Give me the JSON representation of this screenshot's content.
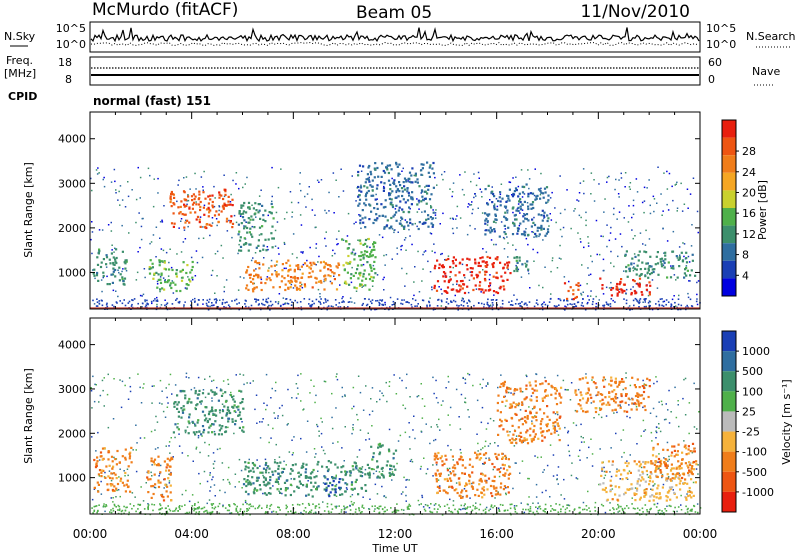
{
  "header": {
    "station": "McMurdo (fitACF)",
    "beam": "Beam 05",
    "date": "11/Nov/2010"
  },
  "strip_panels": {
    "nsky_label": "N.Sky",
    "nsky_ticks": [
      "10^5",
      "10^0"
    ],
    "nsearch_label": "N.Search",
    "nsearch_ticks": [
      "10^5",
      "10^0"
    ],
    "freq_label_1": "Freq.",
    "freq_label_2": "[MHz]",
    "freq_ticks": [
      "18",
      "8"
    ],
    "nave_label": "Nave",
    "nave_ticks": [
      "60",
      "0"
    ],
    "cpid_label": "CPID",
    "cpid_value": "normal (fast) 151"
  },
  "x_axis": {
    "label": "Time UT",
    "ticks": [
      "00:00",
      "04:00",
      "08:00",
      "12:00",
      "16:00",
      "20:00",
      "00:00"
    ]
  },
  "colors": {
    "power_scale": [
      "#0000e0",
      "#1a3fb5",
      "#2f6ea0",
      "#3c8f6c",
      "#4fb04a",
      "#c9d12e",
      "#f5a623",
      "#f07d1a",
      "#ee5512",
      "#e81f0e"
    ],
    "velocity_scale": [
      "#1a3fb5",
      "#2f6ea0",
      "#3c8f6c",
      "#4fb04a",
      "#bbbbbb",
      "#f5b23b",
      "#f07d1a",
      "#ee5512",
      "#e81f0e"
    ]
  },
  "chart_data": [
    {
      "type": "heatmap",
      "panel": "power",
      "ylabel": "Slant Range [km]",
      "ylim": [
        180,
        4600
      ],
      "yticks": [
        1000,
        2000,
        3000,
        4000
      ],
      "xlim_hours": [
        0,
        24
      ],
      "colorbar_label": "Power [dB]",
      "colorbar_ticks": [
        "4",
        "8",
        "12",
        "16",
        "20",
        "24",
        "28"
      ],
      "patches": [
        {
          "t0": 0.1,
          "t1": 1.4,
          "r0": 750,
          "r1": 1550,
          "color": "#3c8f6c"
        },
        {
          "t0": 2.3,
          "t1": 4.0,
          "r0": 600,
          "r1": 1300,
          "color": "#4fb04a"
        },
        {
          "t0": 3.1,
          "t1": 5.6,
          "r0": 2000,
          "r1": 2900,
          "color": "#ee5512"
        },
        {
          "t0": 5.8,
          "t1": 7.2,
          "r0": 1500,
          "r1": 2600,
          "color": "#3c8f6c"
        },
        {
          "t0": 6.0,
          "t1": 9.8,
          "r0": 600,
          "r1": 1300,
          "color": "#f07d1a"
        },
        {
          "t0": 9.8,
          "t1": 11.2,
          "r0": 600,
          "r1": 1800,
          "color": "#4fb04a"
        },
        {
          "t0": 13.5,
          "t1": 16.5,
          "r0": 550,
          "r1": 1400,
          "color": "#e81f0e"
        },
        {
          "t0": 16.6,
          "t1": 17.3,
          "r0": 1000,
          "r1": 1400,
          "color": "#3c8f6c"
        },
        {
          "t0": 18.6,
          "t1": 19.2,
          "r0": 400,
          "r1": 800,
          "color": "#ee5512"
        },
        {
          "t0": 20.0,
          "t1": 22.0,
          "r0": 500,
          "r1": 900,
          "color": "#e81f0e"
        },
        {
          "t0": 21.0,
          "t1": 23.8,
          "r0": 900,
          "r1": 1500,
          "color": "#3c8f6c"
        },
        {
          "t0": 15.5,
          "t1": 18.0,
          "r0": 1800,
          "r1": 3000,
          "color": "#2f6ea0"
        },
        {
          "t0": 10.5,
          "t1": 13.5,
          "r0": 2000,
          "r1": 3500,
          "color": "#2f6ea0"
        }
      ]
    },
    {
      "type": "heatmap",
      "panel": "velocity",
      "ylabel": "Slant Range [km]",
      "ylim": [
        180,
        4600
      ],
      "yticks": [
        1000,
        2000,
        3000,
        4000
      ],
      "xlim_hours": [
        0,
        24
      ],
      "colorbar_label": "Velocity [m s⁻¹]",
      "colorbar_ticks": [
        "1000",
        "500",
        "100",
        "25",
        "-25",
        "-100",
        "-500",
        "-1000"
      ],
      "patches": [
        {
          "t0": 0.1,
          "t1": 1.6,
          "r0": 700,
          "r1": 1700,
          "color": "#f07d1a"
        },
        {
          "t0": 2.2,
          "t1": 3.2,
          "r0": 500,
          "r1": 1500,
          "color": "#f07d1a"
        },
        {
          "t0": 3.2,
          "t1": 6.0,
          "r0": 2000,
          "r1": 3000,
          "color": "#3c8f6c"
        },
        {
          "t0": 6.0,
          "t1": 11.0,
          "r0": 600,
          "r1": 1400,
          "color": "#3c8f6c"
        },
        {
          "t0": 9.2,
          "t1": 9.8,
          "r0": 600,
          "r1": 1000,
          "color": "#1a3fb5"
        },
        {
          "t0": 11.0,
          "t1": 12.0,
          "r0": 1000,
          "r1": 1800,
          "color": "#3c8f6c"
        },
        {
          "t0": 13.5,
          "t1": 16.5,
          "r0": 550,
          "r1": 1600,
          "color": "#f07d1a"
        },
        {
          "t0": 16.0,
          "t1": 18.5,
          "r0": 1800,
          "r1": 3200,
          "color": "#f07d1a"
        },
        {
          "t0": 19.0,
          "t1": 22.0,
          "r0": 2500,
          "r1": 3300,
          "color": "#f07d1a"
        },
        {
          "t0": 20.0,
          "t1": 23.8,
          "r0": 500,
          "r1": 1400,
          "color": "#f5b23b"
        },
        {
          "t0": 22.0,
          "t1": 23.9,
          "r0": 1000,
          "r1": 1800,
          "color": "#f07d1a"
        }
      ]
    }
  ]
}
